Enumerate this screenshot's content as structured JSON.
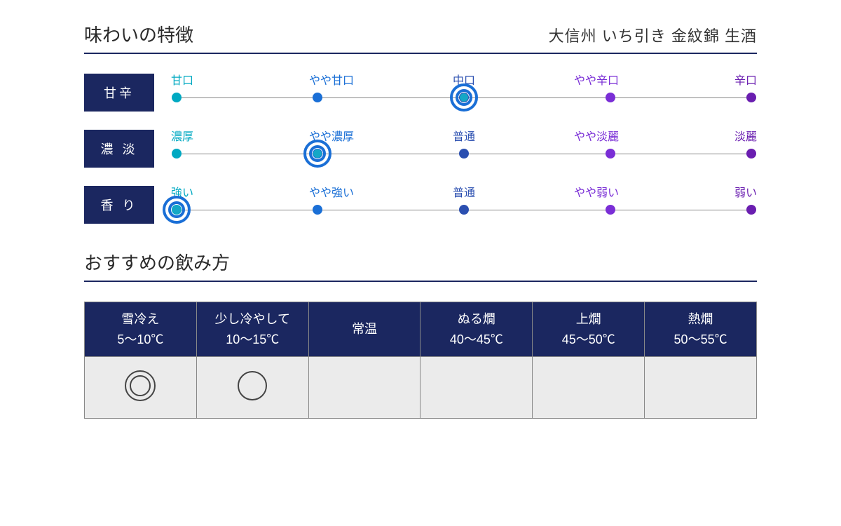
{
  "colors": {
    "navy": "#1b2760",
    "line": "#888",
    "teal": "#00a9c2",
    "blue_a": "#1a6fd6",
    "blue_b": "#2b4fb0",
    "purple": "#7a2ed6",
    "violet": "#6a1eb0",
    "marker_ring": "#1a6fd6",
    "marker_core": "#15a7c6"
  },
  "header": {
    "title": "味わいの特徴",
    "product": "大信州 いち引き 金紋錦 生酒"
  },
  "scales": [
    {
      "label": "甘辛",
      "selected_index": 2,
      "points": [
        {
          "text": "甘口",
          "color": "#00a9c2"
        },
        {
          "text": "やや甘口",
          "color": "#1a6fd6"
        },
        {
          "text": "中口",
          "color": "#2b4fb0"
        },
        {
          "text": "やや辛口",
          "color": "#7a2ed6"
        },
        {
          "text": "辛口",
          "color": "#6a1eb0"
        }
      ]
    },
    {
      "label": "濃 淡",
      "selected_index": 1,
      "points": [
        {
          "text": "濃厚",
          "color": "#00a9c2"
        },
        {
          "text": "やや濃厚",
          "color": "#1a6fd6"
        },
        {
          "text": "普通",
          "color": "#2b4fb0"
        },
        {
          "text": "やや淡麗",
          "color": "#7a2ed6"
        },
        {
          "text": "淡麗",
          "color": "#6a1eb0"
        }
      ]
    },
    {
      "label": "香 り",
      "selected_index": 0,
      "points": [
        {
          "text": "強い",
          "color": "#00a9c2"
        },
        {
          "text": "やや強い",
          "color": "#1a6fd6"
        },
        {
          "text": "普通",
          "color": "#2b4fb0"
        },
        {
          "text": "やや弱い",
          "color": "#7a2ed6"
        },
        {
          "text": "弱い",
          "color": "#6a1eb0"
        }
      ]
    }
  ],
  "serving": {
    "title": "おすすめの飲み方",
    "columns": [
      {
        "name": "雪冷え",
        "range": "5～10℃"
      },
      {
        "name": "少し冷やして",
        "range": "10～15℃"
      },
      {
        "name": "常温",
        "range": ""
      },
      {
        "name": "ぬる燗",
        "range": "40～45℃"
      },
      {
        "name": "上燗",
        "range": "45～50℃"
      },
      {
        "name": "熱燗",
        "range": "50～55℃"
      }
    ],
    "marks": [
      "double",
      "single",
      "",
      "",
      "",
      ""
    ]
  }
}
